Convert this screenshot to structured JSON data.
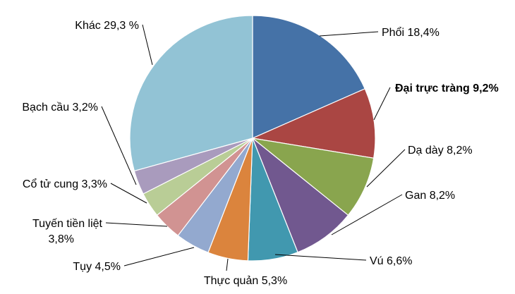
{
  "chart_data": {
    "type": "pie",
    "title": "",
    "slices": [
      {
        "label": "Phổi 18,4%",
        "value": 18.4,
        "color": "#4572A7"
      },
      {
        "label": "Đại trực tràng 9,2%",
        "value": 9.2,
        "color": "#AA4643"
      },
      {
        "label": "Dạ dày 8,2%",
        "value": 8.2,
        "color": "#89A54E"
      },
      {
        "label": "Gan 8,2%",
        "value": 8.2,
        "color": "#71588F"
      },
      {
        "label": "Vú 6,6%",
        "value": 6.6,
        "color": "#4198AF"
      },
      {
        "label": "Thực quản 5,3%",
        "value": 5.3,
        "color": "#DB843D"
      },
      {
        "label": "Tụy 4,5%",
        "value": 4.5,
        "color": "#93A9CF"
      },
      {
        "label": "Tuyến tiền liệt 3,8%",
        "lines": [
          "Tuyến tiền liệt",
          "3,8%"
        ],
        "value": 3.8,
        "color": "#D19392"
      },
      {
        "label": "Cổ tử cung 3,3%",
        "value": 3.3,
        "color": "#B9CD96"
      },
      {
        "label": "Bạch cầu 3,2%",
        "value": 3.2,
        "color": "#A99BBD"
      },
      {
        "label": "Khác 29,3 %",
        "value": 29.3,
        "color": "#92C3D5"
      }
    ]
  }
}
